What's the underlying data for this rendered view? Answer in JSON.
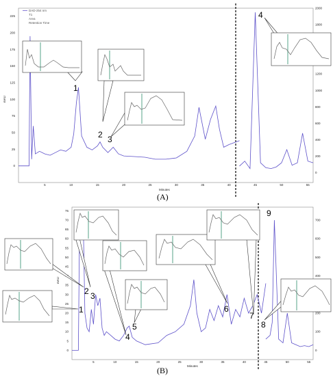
{
  "panels": [
    {
      "id": "A",
      "caption": "(A)",
      "xlabel": "Minutes",
      "ylabel": "mAU",
      "legend": [
        "DAD-254 nm",
        "T1",
        "Area",
        "Retention Time"
      ],
      "y_left_ticks": [
        "0",
        "25",
        "50",
        "75",
        "100",
        "125",
        "150",
        "175",
        "200",
        "225"
      ],
      "y_right_ticks": [
        "0",
        "200",
        "400",
        "600",
        "800",
        "1000",
        "1200",
        "1400",
        "1600",
        "1800",
        "2000"
      ],
      "x_ticks": [
        "5",
        "10",
        "15",
        "20",
        "25",
        "30",
        "35",
        "40",
        "45",
        "50",
        "55"
      ],
      "peaks": [
        "1",
        "2",
        "3",
        "4"
      ]
    },
    {
      "id": "B",
      "caption": "(B)",
      "xlabel": "Minutes",
      "ylabel": "mAU",
      "y_left_ticks": [
        "0",
        "5",
        "10",
        "15",
        "20",
        "25",
        "30",
        "35",
        "40",
        "45",
        "50",
        "55",
        "60",
        "65",
        "70",
        "75"
      ],
      "y_right_ticks": [
        "0",
        "100",
        "200",
        "300",
        "400",
        "500",
        "600",
        "700"
      ],
      "x_ticks": [
        "5",
        "10",
        "15",
        "20",
        "25",
        "30",
        "35",
        "40",
        "45",
        "50",
        "55"
      ],
      "peaks": [
        "1",
        "2",
        "3",
        "4",
        "5",
        "6",
        "7",
        "8",
        "9"
      ]
    }
  ],
  "chart_data": [
    {
      "type": "line",
      "xlabel": "Minutes",
      "ylabel": "mAU",
      "xlim": [
        0,
        56
      ],
      "ylim_left": [
        -25,
        237
      ],
      "ylim_right": [
        -120,
        2000
      ],
      "split_x": 42,
      "series": [
        {
          "x": [
            0,
            2,
            2.2,
            2.5,
            2.8,
            3.2,
            4,
            5,
            6,
            7,
            8,
            9,
            10,
            10.5,
            11,
            11.4,
            12,
            13,
            14,
            15,
            15.5,
            16,
            17,
            18,
            19,
            20,
            22,
            24,
            26,
            28,
            30,
            32,
            33.5,
            34.3,
            35.5,
            36.5,
            37.5,
            38.2,
            39,
            40,
            41,
            42
          ],
          "y": [
            0,
            0,
            195,
            10,
            60,
            18,
            22,
            18,
            16,
            20,
            24,
            22,
            28,
            48,
            95,
            118,
            45,
            28,
            24,
            30,
            36,
            28,
            20,
            28,
            18,
            15,
            14,
            13,
            10,
            10,
            12,
            22,
            45,
            88,
            40,
            70,
            90,
            55,
            28,
            32,
            35,
            38
          ]
        },
        {
          "x": [
            42,
            43,
            44,
            45,
            46,
            47,
            48,
            49,
            50,
            51,
            52,
            53,
            54,
            55,
            56
          ],
          "y": [
            80,
            140,
            50,
            1950,
            120,
            60,
            50,
            70,
            120,
            280,
            90,
            120,
            480,
            140,
            120
          ]
        }
      ],
      "annotations": [
        {
          "label": "1",
          "x": 11.3
        },
        {
          "label": "2",
          "x": 15.6
        },
        {
          "label": "3",
          "x": 16.8
        },
        {
          "label": "4",
          "x": 45
        }
      ]
    },
    {
      "type": "line",
      "xlabel": "Minutes",
      "ylabel": "mAU",
      "xlim": [
        0,
        56
      ],
      "ylim_left": [
        -5,
        77
      ],
      "ylim_right": [
        -50,
        770
      ],
      "split_x": 45,
      "series": [
        {
          "x": [
            0,
            1.5,
            1.8,
            2.0,
            2.3,
            2.6,
            3.0,
            3.5,
            4,
            4.5,
            5,
            5.5,
            6,
            6.5,
            7,
            7.5,
            8,
            9,
            10,
            11,
            12,
            12.8,
            13.3,
            14,
            15,
            17,
            20,
            22,
            24,
            26,
            27.5,
            28.3,
            29,
            30,
            31,
            32,
            33,
            34,
            35,
            36,
            37,
            38,
            39,
            40,
            41,
            42,
            43,
            44,
            45
          ],
          "y": [
            0,
            0,
            75,
            72,
            75,
            74,
            20,
            12,
            10,
            22,
            14,
            30,
            24,
            28,
            12,
            8,
            10,
            8,
            6,
            5,
            8,
            12,
            13,
            7,
            5,
            3,
            4,
            8,
            10,
            14,
            24,
            38,
            20,
            10,
            12,
            22,
            16,
            24,
            18,
            30,
            14,
            22,
            18,
            28,
            20,
            24,
            30,
            20,
            36
          ]
        },
        {
          "x": [
            45,
            46,
            46.5,
            47,
            48,
            49,
            50,
            51,
            52,
            53,
            54,
            55,
            56
          ],
          "y": [
            60,
            80,
            150,
            700,
            60,
            40,
            200,
            40,
            30,
            20,
            25,
            20,
            30
          ]
        }
      ],
      "annotations": [
        {
          "label": "1",
          "x": 5.5
        },
        {
          "label": "2",
          "x": 6.3
        },
        {
          "label": "3",
          "x": 6.9
        },
        {
          "label": "4",
          "x": 12.8
        },
        {
          "label": "5",
          "x": 13.3
        },
        {
          "label": "6",
          "x": 37.5
        },
        {
          "label": "7",
          "x": 43
        },
        {
          "label": "8",
          "x": 46.5
        },
        {
          "label": "9",
          "x": 47
        }
      ]
    }
  ]
}
